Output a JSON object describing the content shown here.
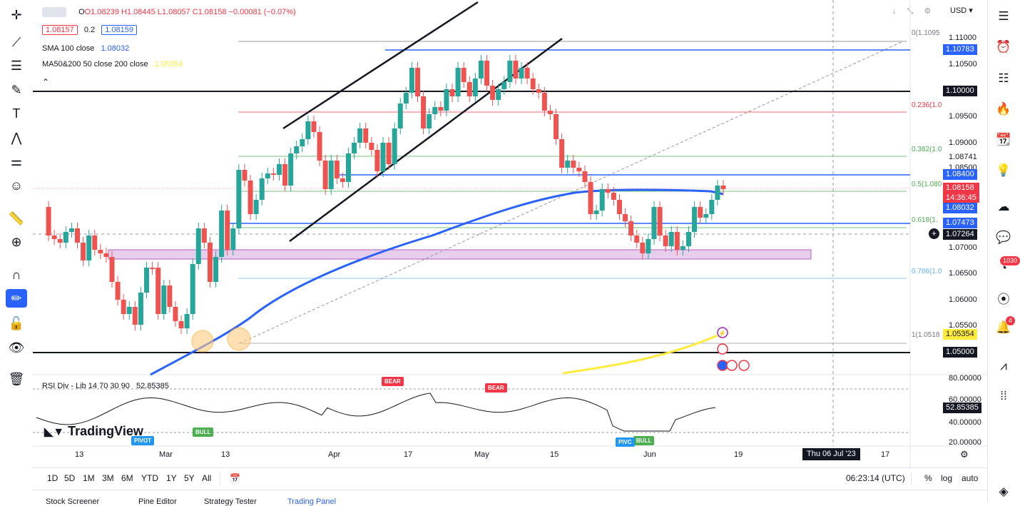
{
  "symbol_ohlc": {
    "open": "O1.08239",
    "high": "H1.08445",
    "low": "L1.08057",
    "close": "C1.08158",
    "change": "−0.00081 (−0.07%)"
  },
  "bid": "1.08157",
  "spread": "0.2",
  "ask": "1.08159",
  "indicators": {
    "sma_label": "SMA 100 close",
    "sma_value": "1.08032",
    "ma_label": "MA50&200 50 close 200 close",
    "ma_value": "1.05354"
  },
  "currency": "USD",
  "price_axis": [
    "1.11000",
    "1.10500",
    "1.09500",
    "1.09000",
    "1.08741",
    "1.08500",
    "1.07000",
    "1.06500",
    "1.06000",
    "1.05500"
  ],
  "price_tags": {
    "l1": "1.10783",
    "l2": "1.10000",
    "l3": "1.08400",
    "last": "1.08158",
    "countdown": "14:36:45",
    "sma": "1.08032",
    "l4": "1.07473",
    "cross": "1.07264",
    "ma200": "1.05354",
    "l5": "1.05000"
  },
  "fib": [
    "0(1.1095",
    "0.236(1.0",
    "0.382(1.0",
    "0.5(1.080",
    "0.618(1.",
    "0.786(1.0",
    "1(1.0518"
  ],
  "rsi": {
    "label": "RSI Div - Lib 14 70 30 90",
    "value": "52.85385",
    "axis": [
      "80.00000",
      "60.00000",
      "40.00000",
      "20.00000"
    ],
    "tag": "52.85385"
  },
  "signals": {
    "bear1": "BEAR",
    "bear2": "BEAR",
    "bull1": "BULL",
    "bull2": "BULL",
    "pivot": "PIVOT",
    "pivc": "PIVC"
  },
  "time_axis": [
    "13",
    "Mar",
    "13",
    "Apr",
    "17",
    "May",
    "15",
    "Jun",
    "19",
    "17"
  ],
  "crosshair_date": "Thu 06 Jul '23",
  "watermark": "TradingView",
  "timeframes": [
    "1D",
    "5D",
    "1M",
    "3M",
    "6M",
    "YTD",
    "1Y",
    "5Y",
    "All"
  ],
  "clock": "06:23:14 (UTC)",
  "scale_opts": {
    "pct": "%",
    "log": "log",
    "auto": "auto"
  },
  "badges": {
    "alerts": "1030",
    "notif": "4"
  },
  "colors": {
    "up": "#26a69a",
    "down": "#ef5350",
    "sma": "#2962ff",
    "ma200": "#ffeb3b",
    "level": "#2962ff",
    "zone": "#ce93d8"
  },
  "footer_tabs": [
    "Stock Screener",
    "Pine Editor",
    "Strategy Tester",
    "Trading Panel"
  ]
}
